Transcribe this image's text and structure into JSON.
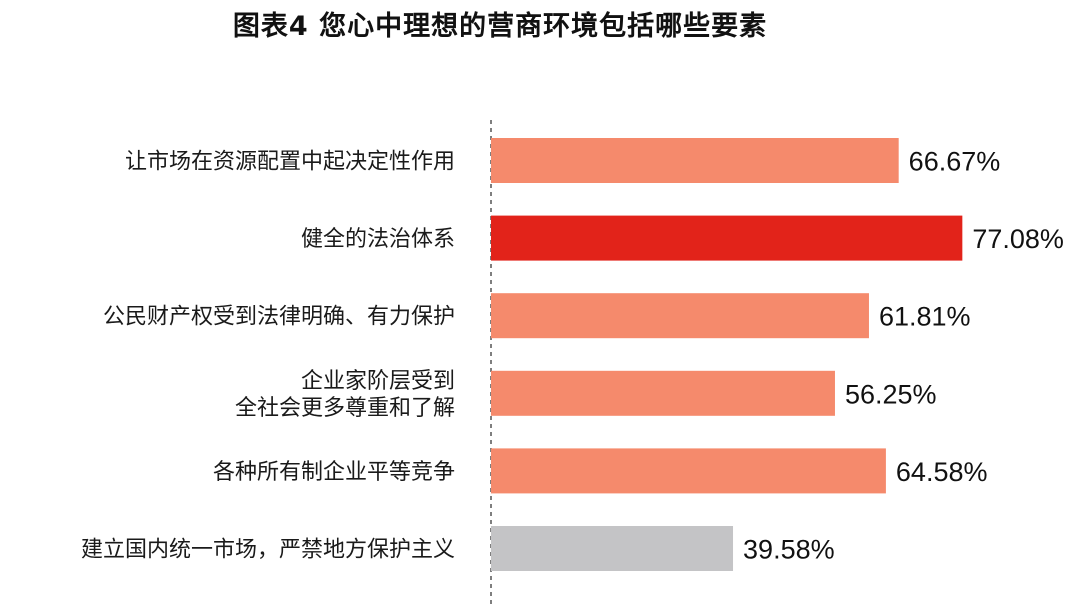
{
  "chart_data": {
    "type": "bar",
    "orientation": "horizontal",
    "title": "图表4  您心中理想的营商环境包括哪些要素",
    "categories": [
      [
        "让市场在资源配置中起决定性作用"
      ],
      [
        "健全的法治体系"
      ],
      [
        "公民财产权受到法律明确、有力保护"
      ],
      [
        "企业家阶层受到",
        "全社会更多尊重和了解"
      ],
      [
        "各种所有制企业平等竞争"
      ],
      [
        "建立国内统一市场，严禁地方保护主义"
      ]
    ],
    "values": [
      66.67,
      77.08,
      61.81,
      56.25,
      64.58,
      39.58
    ],
    "value_labels": [
      "66.67%",
      "77.08%",
      "61.81%",
      "56.25%",
      "64.58%",
      "39.58%"
    ],
    "colors": [
      "#f58a6c",
      "#e2231a",
      "#f58a6c",
      "#f58a6c",
      "#f58a6c",
      "#c4c4c6"
    ],
    "xlim": [
      0,
      100
    ],
    "axis_line": "dashed",
    "grid": false,
    "legend": "none"
  }
}
